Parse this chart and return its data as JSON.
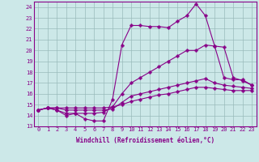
{
  "xlabel": "Windchill (Refroidissement éolien,°C)",
  "bg_color": "#cce8e8",
  "line_color": "#880088",
  "grid_color": "#99bbbb",
  "xlim": [
    -0.5,
    23.5
  ],
  "ylim": [
    13,
    24.5
  ],
  "yticks": [
    13,
    14,
    15,
    16,
    17,
    18,
    19,
    20,
    21,
    22,
    23,
    24
  ],
  "xticks": [
    0,
    1,
    2,
    3,
    4,
    5,
    6,
    7,
    8,
    9,
    10,
    11,
    12,
    13,
    14,
    15,
    16,
    17,
    18,
    19,
    20,
    21,
    22,
    23
  ],
  "series": [
    [
      14.5,
      14.7,
      14.5,
      14.0,
      14.2,
      13.7,
      13.5,
      13.5,
      15.5,
      20.5,
      22.3,
      22.3,
      22.2,
      22.2,
      22.1,
      22.7,
      23.2,
      24.3,
      23.2,
      20.4,
      20.3,
      17.5,
      17.2,
      16.8
    ],
    [
      14.5,
      14.7,
      14.5,
      14.2,
      14.2,
      14.2,
      14.2,
      14.3,
      14.8,
      16.0,
      17.0,
      17.5,
      18.0,
      18.5,
      19.0,
      19.5,
      20.0,
      20.0,
      20.5,
      20.4,
      17.5,
      17.3,
      17.3,
      16.8
    ],
    [
      14.5,
      14.7,
      14.7,
      14.5,
      14.5,
      14.5,
      14.5,
      14.5,
      14.6,
      15.2,
      15.8,
      16.0,
      16.2,
      16.4,
      16.6,
      16.8,
      17.0,
      17.2,
      17.4,
      17.0,
      16.8,
      16.7,
      16.6,
      16.5
    ],
    [
      14.5,
      14.7,
      14.7,
      14.7,
      14.7,
      14.7,
      14.7,
      14.7,
      14.8,
      15.0,
      15.3,
      15.5,
      15.7,
      15.9,
      16.0,
      16.2,
      16.4,
      16.6,
      16.6,
      16.5,
      16.4,
      16.3,
      16.3,
      16.3
    ]
  ],
  "marker": "P",
  "markersize": 2.5,
  "linewidth": 0.8,
  "tick_fontsize": 5.0,
  "xlabel_fontsize": 5.5
}
